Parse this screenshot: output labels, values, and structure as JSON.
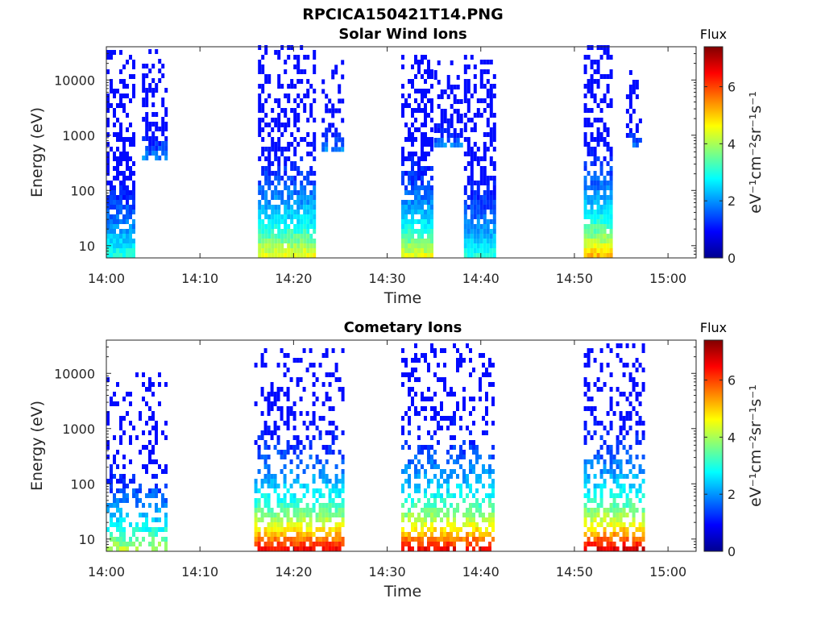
{
  "figure_title": "RPCICA150421T14.PNG",
  "colors": {
    "background": "#ffffff",
    "axes": "#262626",
    "text": "#262626"
  },
  "chart_data": [
    {
      "type": "heatmap",
      "title": "Solar Wind Ions",
      "xlabel": "Time",
      "ylabel": "Energy (eV)",
      "yscale": "log",
      "ylim": [
        6,
        40000
      ],
      "xlim_minutes": [
        0,
        63
      ],
      "x_tick_labels": [
        "14:00",
        "14:10",
        "14:20",
        "14:30",
        "14:40",
        "14:50",
        "15:00"
      ],
      "x_tick_minutes": [
        0,
        10,
        20,
        30,
        40,
        50,
        60
      ],
      "y_tick_labels": [
        "10",
        "100",
        "1000",
        "10000"
      ],
      "y_tick_values": [
        10,
        100,
        1000,
        10000
      ],
      "colorbar": {
        "title": "Flux",
        "label": "eV⁻¹cm⁻²sr⁻¹s⁻¹",
        "range": [
          0,
          7.4
        ],
        "tick_labels": [
          "0",
          "2",
          "4",
          "6"
        ],
        "tick_values": [
          0,
          2,
          4,
          6
        ],
        "colormap": "jet"
      },
      "bursts": [
        {
          "start_min": 0.0,
          "end_min": 3.0,
          "e_min": 6,
          "e_max": 30000,
          "peak_flux": 3.3,
          "density": 0.75
        },
        {
          "start_min": 3.8,
          "end_min": 6.3,
          "e_min": 350,
          "e_max": 30000,
          "peak_flux": 2.2,
          "density": 0.55
        },
        {
          "start_min": 16.2,
          "end_min": 22.3,
          "e_min": 6,
          "e_max": 35000,
          "peak_flux": 4.9,
          "density": 0.7
        },
        {
          "start_min": 23.0,
          "end_min": 25.3,
          "e_min": 500,
          "e_max": 20000,
          "peak_flux": 2.2,
          "density": 0.5
        },
        {
          "start_min": 31.5,
          "end_min": 34.8,
          "e_min": 6,
          "e_max": 25000,
          "peak_flux": 4.8,
          "density": 0.75
        },
        {
          "start_min": 35.0,
          "end_min": 37.8,
          "e_min": 600,
          "e_max": 22000,
          "peak_flux": 2.2,
          "density": 0.5
        },
        {
          "start_min": 38.2,
          "end_min": 41.3,
          "e_min": 6,
          "e_max": 28000,
          "peak_flux": 3.3,
          "density": 0.75
        },
        {
          "start_min": 51.0,
          "end_min": 54.0,
          "e_min": 6,
          "e_max": 35000,
          "peak_flux": 5.5,
          "density": 0.75
        },
        {
          "start_min": 55.5,
          "end_min": 57.2,
          "e_min": 600,
          "e_max": 15000,
          "peak_flux": 2.2,
          "density": 0.45
        }
      ]
    },
    {
      "type": "heatmap",
      "title": "Cometary Ions",
      "xlabel": "Time",
      "ylabel": "Energy (eV)",
      "yscale": "log",
      "ylim": [
        6,
        40000
      ],
      "xlim_minutes": [
        0,
        63
      ],
      "x_tick_labels": [
        "14:00",
        "14:10",
        "14:20",
        "14:30",
        "14:40",
        "14:50",
        "15:00"
      ],
      "x_tick_minutes": [
        0,
        10,
        20,
        30,
        40,
        50,
        60
      ],
      "y_tick_labels": [
        "10",
        "100",
        "1000",
        "10000"
      ],
      "y_tick_values": [
        10,
        100,
        1000,
        10000
      ],
      "colorbar": {
        "title": "Flux",
        "label": "eV⁻¹cm⁻²sr⁻¹s⁻¹",
        "range": [
          0,
          7.4
        ],
        "tick_labels": [
          "0",
          "2",
          "4",
          "6"
        ],
        "tick_values": [
          0,
          2,
          4,
          6
        ],
        "colormap": "jet"
      },
      "bursts": [
        {
          "start_min": 0.0,
          "end_min": 6.3,
          "e_min": 6,
          "e_max": 10000,
          "peak_flux": 4.5,
          "density": 0.35
        },
        {
          "start_min": 15.8,
          "end_min": 25.3,
          "e_min": 6,
          "e_max": 25000,
          "peak_flux": 7.0,
          "density": 0.5
        },
        {
          "start_min": 31.5,
          "end_min": 41.3,
          "e_min": 6,
          "e_max": 30000,
          "peak_flux": 7.0,
          "density": 0.45
        },
        {
          "start_min": 51.0,
          "end_min": 57.3,
          "e_min": 6,
          "e_max": 30000,
          "peak_flux": 7.2,
          "density": 0.5
        }
      ]
    }
  ]
}
